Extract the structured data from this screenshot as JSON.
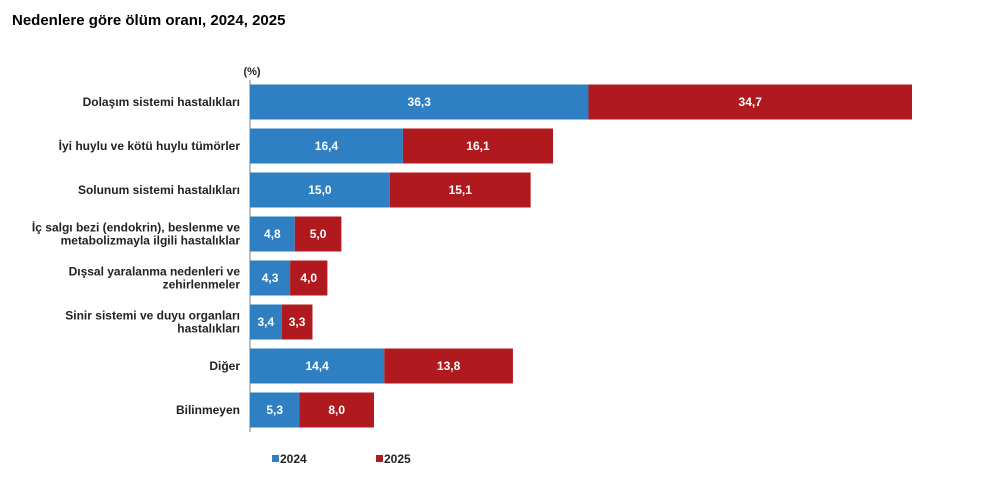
{
  "chart_data": {
    "type": "bar",
    "orientation": "horizontal",
    "stacked": true,
    "title": "Nedenlere göre ölüm oranı, 2024, 2025",
    "unit": "(%)",
    "categories": [
      [
        "Dolaşım sistemi hastalıkları"
      ],
      [
        "İyi huylu ve kötü huylu tümörler"
      ],
      [
        "Solunum sistemi hastalıkları"
      ],
      [
        "İç salgı bezi (endokrin), beslenme ve",
        "metabolizmayla ilgili hastalıklar"
      ],
      [
        "Dışsal yaralanma nedenleri ve",
        "zehirlenmeler"
      ],
      [
        "Sinir sistemi ve duyu organları",
        "hastalıkları"
      ],
      [
        "Diğer"
      ],
      [
        "Bilinmeyen"
      ]
    ],
    "series": [
      {
        "name": "2024",
        "color": "#2E80C3",
        "values": [
          36.3,
          16.4,
          15.0,
          4.8,
          4.3,
          3.4,
          14.4,
          5.3
        ],
        "labels": [
          "36,3",
          "16,4",
          "15,0",
          "4,8",
          "4,3",
          "3,4",
          "14,4",
          "5,3"
        ]
      },
      {
        "name": "2025",
        "color": "#B01A1E",
        "values": [
          34.7,
          16.1,
          15.1,
          5.0,
          4.0,
          3.3,
          13.8,
          8.0
        ],
        "labels": [
          "34,7",
          "16,1",
          "15,1",
          "5,0",
          "4,0",
          "3,3",
          "13,8",
          "8,0"
        ]
      }
    ],
    "xlim": [
      0,
      71
    ],
    "grid": false,
    "legend": "bottom"
  }
}
